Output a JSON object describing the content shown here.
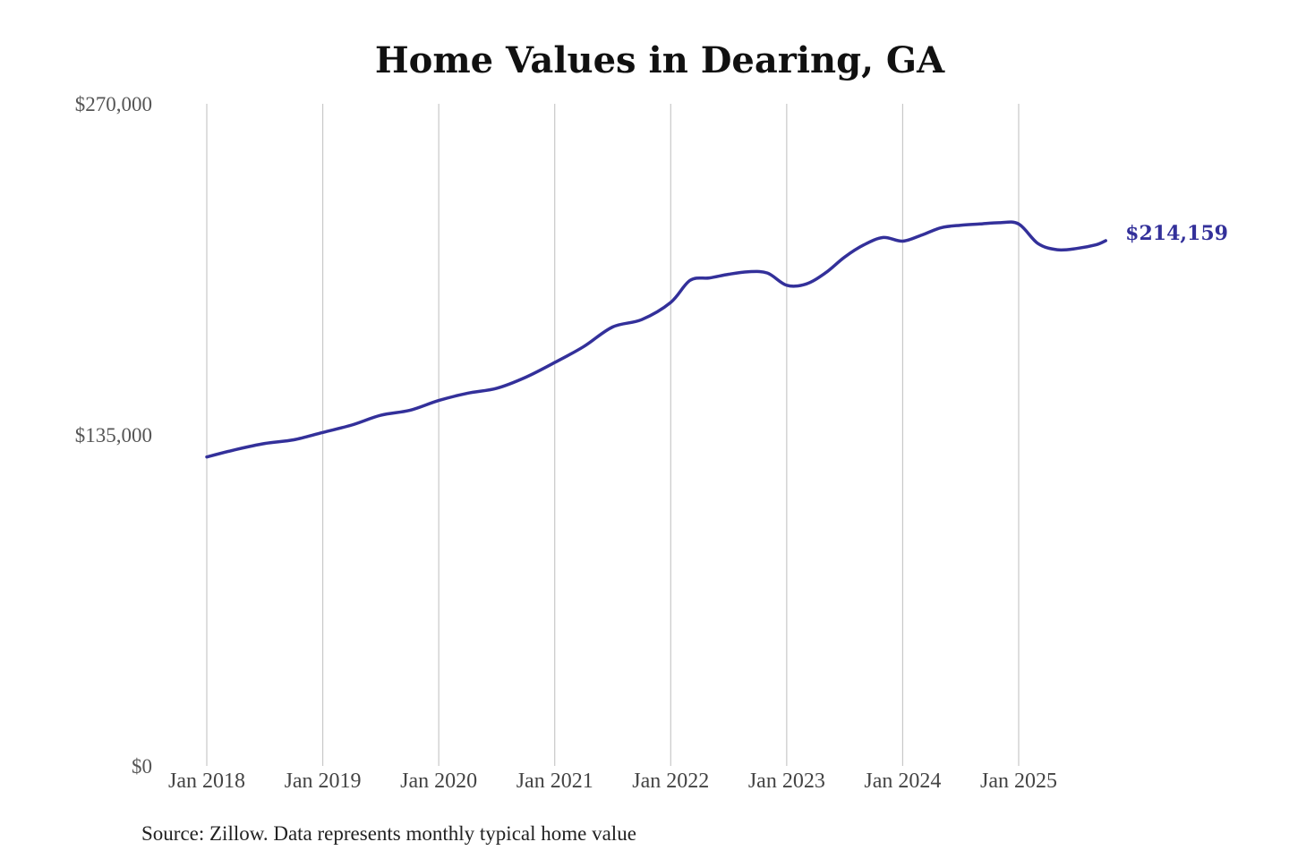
{
  "colors": {
    "line": "#33309a",
    "grid": "#c8c8c8",
    "text": "#111111"
  },
  "source": "Source: Zillow. Data represents monthly typical home value",
  "chart_data": {
    "type": "line",
    "title": "Home Values in Dearing, GA",
    "xlabel": "",
    "ylabel": "",
    "ylim": [
      0,
      270000
    ],
    "yticks": [
      {
        "value": 0,
        "label": "$0"
      },
      {
        "value": 135000,
        "label": "$135,000"
      },
      {
        "value": 270000,
        "label": "$270,000"
      }
    ],
    "xticks": [
      {
        "value": "2018-01",
        "label": "Jan 2018"
      },
      {
        "value": "2019-01",
        "label": "Jan 2019"
      },
      {
        "value": "2020-01",
        "label": "Jan 2020"
      },
      {
        "value": "2021-01",
        "label": "Jan 2021"
      },
      {
        "value": "2022-01",
        "label": "Jan 2022"
      },
      {
        "value": "2023-01",
        "label": "Jan 2023"
      },
      {
        "value": "2024-01",
        "label": "Jan 2024"
      },
      {
        "value": "2025-01",
        "label": "Jan 2025"
      }
    ],
    "grid": "vertical",
    "end_label": "$214,159",
    "series": [
      {
        "x": [
          "2018-01",
          "2018-04",
          "2018-07",
          "2018-10",
          "2019-01",
          "2019-04",
          "2019-07",
          "2019-10",
          "2020-01",
          "2020-04",
          "2020-07",
          "2020-10",
          "2021-01",
          "2021-04",
          "2021-07",
          "2021-10",
          "2022-01",
          "2022-03",
          "2022-05",
          "2022-07",
          "2022-09",
          "2022-11",
          "2023-01",
          "2023-03",
          "2023-05",
          "2023-07",
          "2023-09",
          "2023-11",
          "2024-01",
          "2024-03",
          "2024-05",
          "2024-07",
          "2024-09",
          "2024-11",
          "2025-01",
          "2025-03",
          "2025-05",
          "2025-07",
          "2025-09",
          "2025-10"
        ],
        "y": [
          126000,
          129000,
          131500,
          133000,
          136000,
          139000,
          143000,
          145000,
          149000,
          152000,
          154000,
          158500,
          164500,
          171000,
          179000,
          182000,
          189000,
          198000,
          199000,
          200500,
          201500,
          201000,
          196000,
          196500,
          201000,
          207500,
          212500,
          215500,
          214000,
          216500,
          219500,
          220500,
          221000,
          221500,
          221000,
          213000,
          210500,
          211000,
          212500,
          214159
        ]
      }
    ]
  }
}
